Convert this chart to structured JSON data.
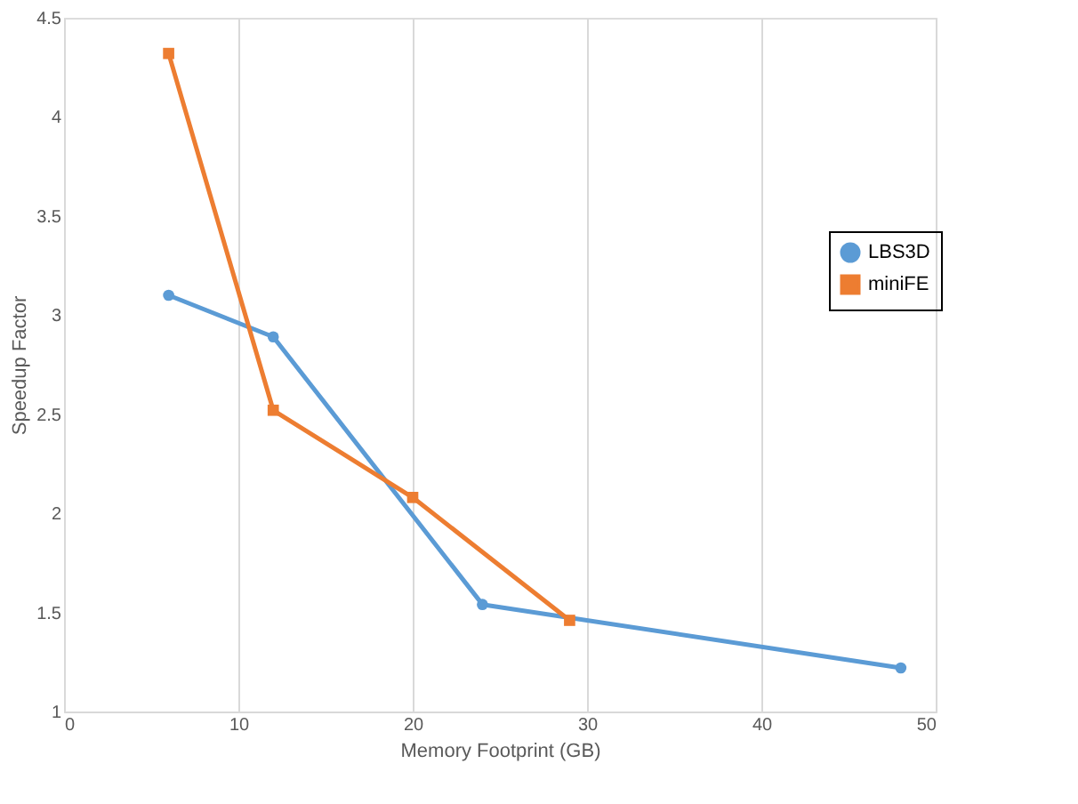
{
  "chart_data": {
    "type": "line",
    "xlabel": "Memory Footprint  (GB)",
    "ylabel": "Speedup Factor",
    "series": [
      {
        "name": "LBS3D",
        "color": "#5b9bd5",
        "marker": "circle",
        "x": [
          6,
          12,
          24,
          48
        ],
        "values": [
          3.1,
          2.89,
          1.54,
          1.22
        ]
      },
      {
        "name": "miniFE",
        "color": "#ed7d31",
        "marker": "square",
        "x": [
          6,
          12,
          20,
          29
        ],
        "values": [
          4.32,
          2.52,
          2.08,
          1.46
        ]
      }
    ],
    "xlim": [
      0,
      50
    ],
    "xticks": [
      0,
      10,
      20,
      30,
      40,
      50
    ],
    "ylim": [
      1,
      4.5
    ],
    "yticks": [
      1,
      1.5,
      2,
      2.5,
      3,
      3.5,
      4,
      4.5
    ],
    "grid": "x",
    "legend": "right"
  }
}
